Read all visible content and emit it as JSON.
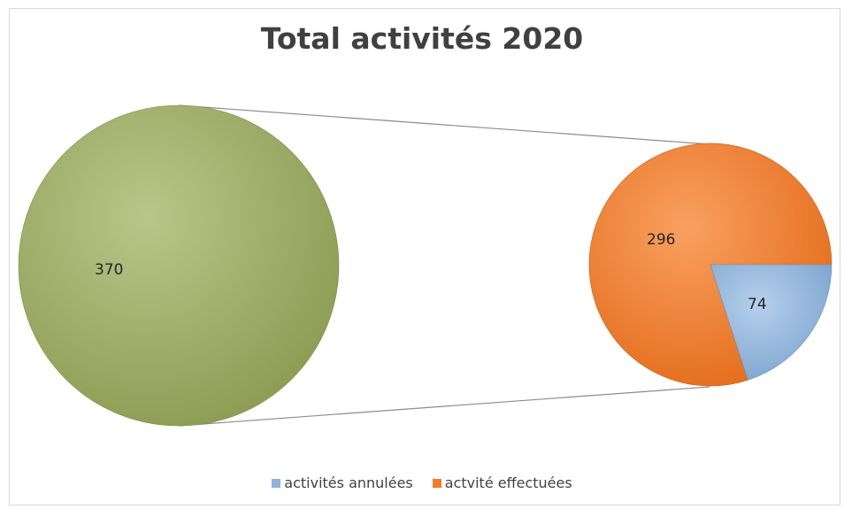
{
  "chart_data": {
    "type": "pie",
    "title": "Total activités 2020",
    "subtype": "pie-of-pie",
    "main_pie": {
      "slices": [
        {
          "label": "",
          "value": 370,
          "color": "#9bab5f"
        }
      ]
    },
    "secondary_pie": {
      "slices": [
        {
          "label": "actvité effectuées",
          "value": 296,
          "color": "#f07c2c"
        },
        {
          "label": "activités annulées",
          "value": 74,
          "color": "#8db3da"
        }
      ]
    },
    "legend": {
      "position": "bottom",
      "items": [
        {
          "label": "activités annulées",
          "color": "#8db3da"
        },
        {
          "label": "actvité effectuées",
          "color": "#f07c2c"
        }
      ]
    }
  }
}
